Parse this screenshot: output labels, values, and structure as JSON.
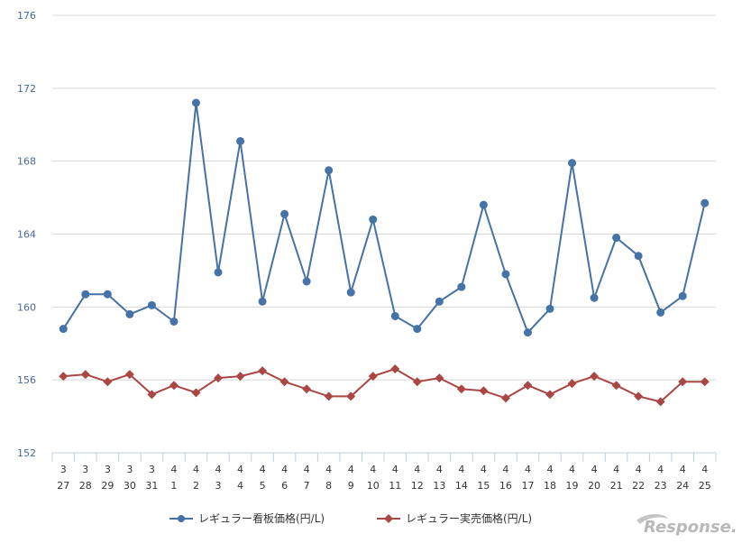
{
  "chart_data": {
    "type": "line",
    "title": "",
    "xlabel": "",
    "ylabel": "",
    "ylim": [
      152,
      176
    ],
    "yticks": [
      152,
      156,
      160,
      164,
      168,
      172,
      176
    ],
    "grid": "horizontal",
    "legend_position": "bottom-center",
    "categories": [
      {
        "month": "3",
        "day": "27"
      },
      {
        "month": "3",
        "day": "28"
      },
      {
        "month": "3",
        "day": "29"
      },
      {
        "month": "3",
        "day": "30"
      },
      {
        "month": "3",
        "day": "31"
      },
      {
        "month": "4",
        "day": "1"
      },
      {
        "month": "4",
        "day": "2"
      },
      {
        "month": "4",
        "day": "3"
      },
      {
        "month": "4",
        "day": "4"
      },
      {
        "month": "4",
        "day": "5"
      },
      {
        "month": "4",
        "day": "6"
      },
      {
        "month": "4",
        "day": "7"
      },
      {
        "month": "4",
        "day": "8"
      },
      {
        "month": "4",
        "day": "9"
      },
      {
        "month": "4",
        "day": "10"
      },
      {
        "month": "4",
        "day": "11"
      },
      {
        "month": "4",
        "day": "12"
      },
      {
        "month": "4",
        "day": "13"
      },
      {
        "month": "4",
        "day": "14"
      },
      {
        "month": "4",
        "day": "15"
      },
      {
        "month": "4",
        "day": "16"
      },
      {
        "month": "4",
        "day": "17"
      },
      {
        "month": "4",
        "day": "18"
      },
      {
        "month": "4",
        "day": "19"
      },
      {
        "month": "4",
        "day": "20"
      },
      {
        "month": "4",
        "day": "21"
      },
      {
        "month": "4",
        "day": "22"
      },
      {
        "month": "4",
        "day": "23"
      },
      {
        "month": "4",
        "day": "24"
      },
      {
        "month": "4",
        "day": "25"
      }
    ],
    "series": [
      {
        "name": "レギュラー看板価格(円/L)",
        "color": "#4572a7",
        "marker": "circle",
        "values": [
          158.8,
          160.7,
          160.7,
          159.6,
          160.1,
          159.2,
          171.2,
          161.9,
          169.1,
          160.3,
          165.1,
          161.4,
          167.5,
          160.8,
          164.8,
          159.5,
          158.8,
          160.3,
          161.1,
          165.6,
          161.8,
          158.6,
          159.9,
          167.9,
          160.5,
          163.8,
          162.8,
          159.7,
          160.6,
          165.7
        ]
      },
      {
        "name": "レギュラー実売価格(円/L)",
        "color": "#aa4643",
        "marker": "diamond",
        "values": [
          156.2,
          156.3,
          155.9,
          156.3,
          155.2,
          155.7,
          155.3,
          156.1,
          156.2,
          156.5,
          155.9,
          155.5,
          155.1,
          155.1,
          156.2,
          156.6,
          155.9,
          156.1,
          155.5,
          155.4,
          155.0,
          155.7,
          155.2,
          155.8,
          156.2,
          155.7,
          155.1,
          154.8,
          155.9,
          155.9
        ]
      }
    ]
  },
  "watermark": {
    "text": "Response."
  }
}
